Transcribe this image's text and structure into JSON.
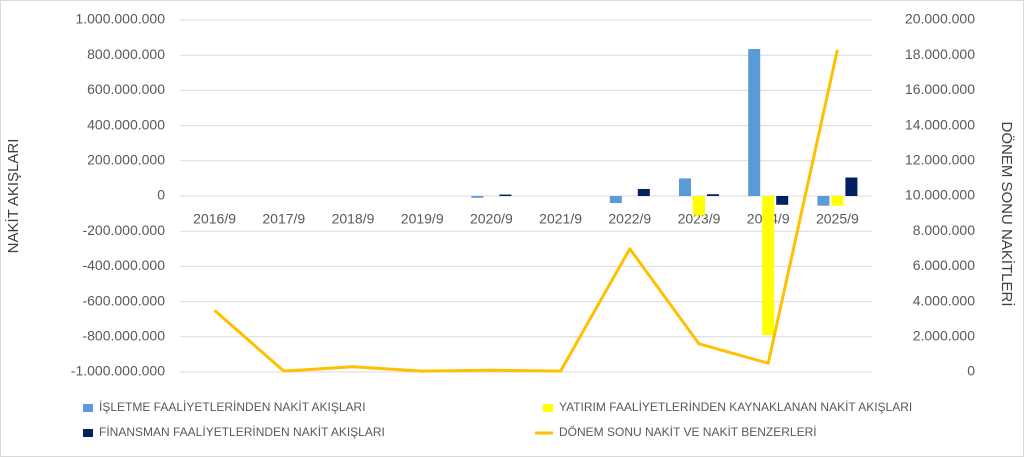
{
  "chart_data": {
    "type": "bar-line",
    "y_axis_label": "NAKİT AKIŞLARI",
    "y2_axis_label": "DÖNEM SONU NAKİTLERİ",
    "categories": [
      "2016/9",
      "2017/9",
      "2018/9",
      "2019/9",
      "2020/9",
      "2021/9",
      "2022/9",
      "2023/9",
      "2024/9",
      "2025/9"
    ],
    "series": [
      {
        "name": "İŞLETME FAALİYETLERİNDEN NAKİT AKIŞLARI",
        "color": "#5b9bd5",
        "type": "bar",
        "values": [
          0,
          0,
          0,
          0,
          -10000000,
          0,
          -40000000,
          100000000,
          835000000,
          -55000000
        ]
      },
      {
        "name": "YATIRIM FAALİYETLERİNDEN KAYNAKLANAN NAKİT AKIŞLARI",
        "color": "#ffff00",
        "type": "bar",
        "values": [
          0,
          0,
          0,
          0,
          0,
          0,
          0,
          -110000000,
          -790000000,
          -55000000
        ]
      },
      {
        "name": "FİNANSMAN FAALİYETLERİNDEN NAKİT AKIŞLARI",
        "color": "#002060",
        "type": "bar",
        "values": [
          0,
          0,
          0,
          0,
          8000000,
          0,
          40000000,
          10000000,
          -50000000,
          105000000
        ]
      },
      {
        "name": "DÖNEM SONU NAKİT VE NAKİT BENZERLERİ",
        "color": "#ffc000",
        "type": "line",
        "axis": "y2",
        "values": [
          3500000,
          50000,
          300000,
          50000,
          100000,
          50000,
          7000000,
          1600000,
          500000,
          18300000
        ]
      }
    ],
    "ylim": [
      -1000000000,
      1000000000
    ],
    "yticks": [
      {
        "value": -1000000000,
        "label": "-1.000.000.000"
      },
      {
        "value": -800000000,
        "label": "-800.000.000"
      },
      {
        "value": -600000000,
        "label": "-600.000.000"
      },
      {
        "value": -400000000,
        "label": "-400.000.000"
      },
      {
        "value": -200000000,
        "label": "-200.000.000"
      },
      0,
      {
        "value": 200000000,
        "label": "200.000.000"
      },
      {
        "value": 400000000,
        "label": "400.000.000"
      },
      {
        "value": 600000000,
        "label": "600.000.000"
      },
      {
        "value": 800000000,
        "label": "800.000.000"
      },
      {
        "value": 1000000000,
        "label": "1.000.000.000"
      }
    ],
    "y2lim": [
      0,
      20000000
    ],
    "y2ticks": [
      0,
      {
        "value": 2000000,
        "label": "2.000.000"
      },
      {
        "value": 4000000,
        "label": "4.000.000"
      },
      {
        "value": 6000000,
        "label": "6.000.000"
      },
      {
        "value": 8000000,
        "label": "8.000.000"
      },
      {
        "value": 10000000,
        "label": "10.000.000"
      },
      {
        "value": 12000000,
        "label": "12.000.000"
      },
      {
        "value": 14000000,
        "label": "14.000.000"
      },
      {
        "value": 16000000,
        "label": "16.000.000"
      },
      {
        "value": 18000000,
        "label": "18.000.000"
      },
      {
        "value": 20000000,
        "label": "20.000.000"
      }
    ],
    "grid": true
  }
}
